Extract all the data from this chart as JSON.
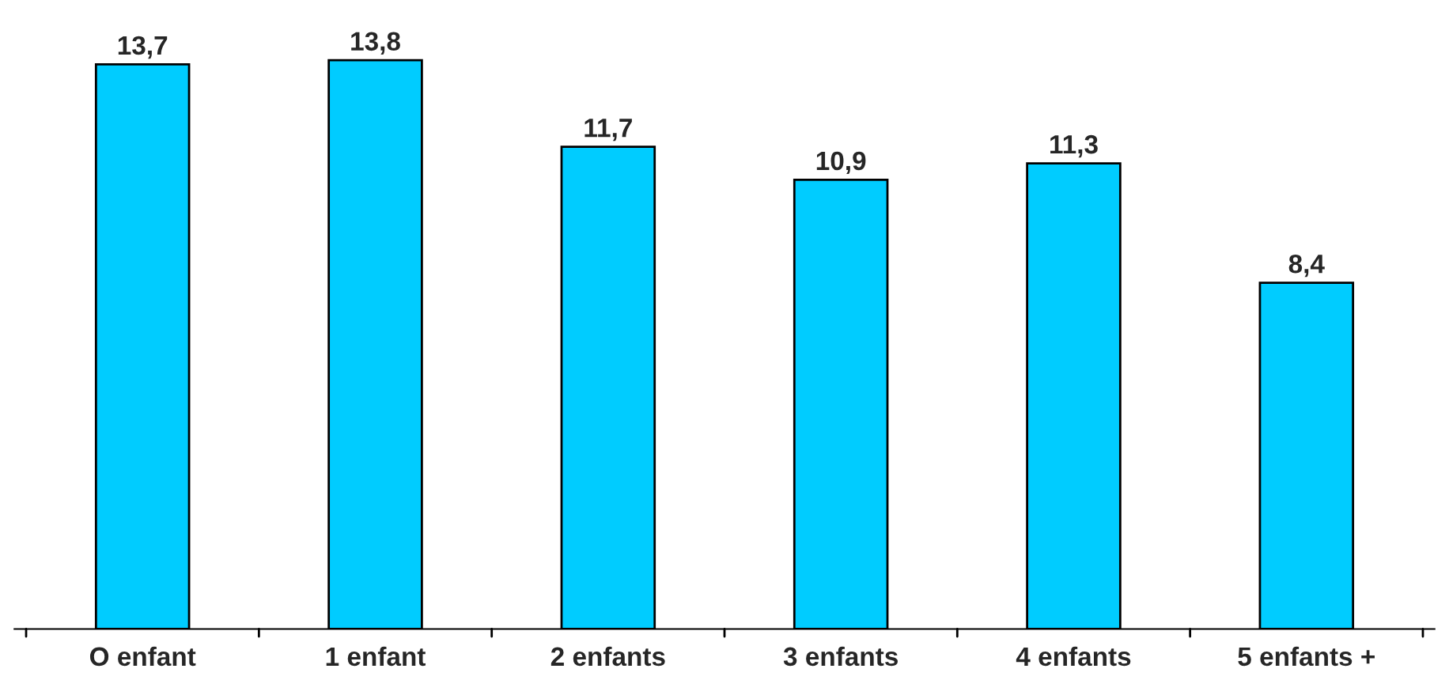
{
  "chart_data": {
    "type": "bar",
    "categories": [
      "O enfant",
      "1 enfant",
      "2 enfants",
      "3 enfants",
      "4 enfants",
      "5 enfants +"
    ],
    "values": [
      13.7,
      13.8,
      11.7,
      10.9,
      11.3,
      8.4
    ],
    "value_labels": [
      "13,7",
      "13,8",
      "11,7",
      "10,9",
      "11,3",
      "8,4"
    ],
    "color": "#00ccff",
    "grid": false,
    "legend": false
  }
}
